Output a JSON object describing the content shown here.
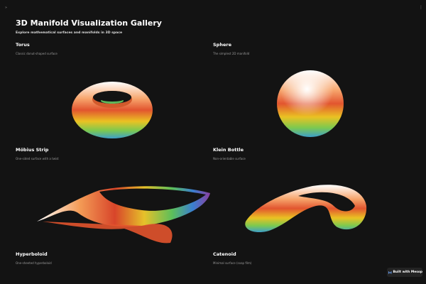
{
  "header": {
    "title": "3D Manifold Visualization Gallery",
    "subtitle": "Explore mathematical surfaces and manifolds in 3D space"
  },
  "cards": [
    {
      "title": "Torus",
      "description": "Classic donut-shaped surface"
    },
    {
      "title": "Sphere",
      "description": "The simplest 2D manifold"
    },
    {
      "title": "Möbius Strip",
      "description": "One-sided surface with a twist"
    },
    {
      "title": "Klein Bottle",
      "description": "Non-orientable surface"
    },
    {
      "title": "Hyperboloid",
      "description": "One-sheeted hyperboloid"
    },
    {
      "title": "Catenoid",
      "description": "Minimal surface (soap film)"
    }
  ],
  "badge": {
    "label": "Built with Mesop"
  }
}
